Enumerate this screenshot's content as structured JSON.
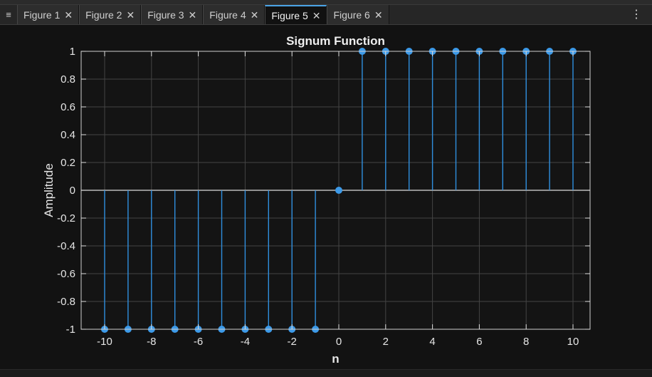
{
  "tabs": [
    {
      "label": "Figure 1",
      "active": false
    },
    {
      "label": "Figure 2",
      "active": false
    },
    {
      "label": "Figure 3",
      "active": false
    },
    {
      "label": "Figure 4",
      "active": false
    },
    {
      "label": "Figure 5",
      "active": true
    },
    {
      "label": "Figure 6",
      "active": false
    }
  ],
  "icons": {
    "menu": "hamburger-icon",
    "close": "close-icon",
    "more": "kebab-menu-icon"
  },
  "colors": {
    "stem": "#2f8fdf",
    "marker": "#3d9ae8",
    "axes_bg": "#141414",
    "grid": "#444444",
    "text": "#e6e6e6"
  },
  "chart_data": {
    "type": "stem",
    "title": "Signum Function",
    "xlabel": "n",
    "ylabel": "Amplitude",
    "x": [
      -10,
      -9,
      -8,
      -7,
      -6,
      -5,
      -4,
      -3,
      -2,
      -1,
      0,
      1,
      2,
      3,
      4,
      5,
      6,
      7,
      8,
      9,
      10
    ],
    "y": [
      -1,
      -1,
      -1,
      -1,
      -1,
      -1,
      -1,
      -1,
      -1,
      -1,
      0,
      1,
      1,
      1,
      1,
      1,
      1,
      1,
      1,
      1,
      1
    ],
    "xlim": [
      -11,
      11
    ],
    "ylim": [
      -1,
      1
    ],
    "xticks": [
      -10,
      -8,
      -6,
      -4,
      -2,
      0,
      2,
      4,
      6,
      8,
      10
    ],
    "xtick_labels": [
      "-10",
      "-8",
      "-6",
      "-4",
      "-2",
      "0",
      "2",
      "4",
      "6",
      "8",
      "10"
    ],
    "yticks": [
      -1,
      -0.8,
      -0.6,
      -0.4,
      -0.2,
      0,
      0.2,
      0.4,
      0.6,
      0.8,
      1
    ],
    "ytick_labels": [
      "-1",
      "-0.8",
      "-0.6",
      "-0.4",
      "-0.2",
      "0",
      "0.2",
      "0.4",
      "0.6",
      "0.8",
      "1"
    ],
    "grid": true,
    "baseline": 0
  }
}
